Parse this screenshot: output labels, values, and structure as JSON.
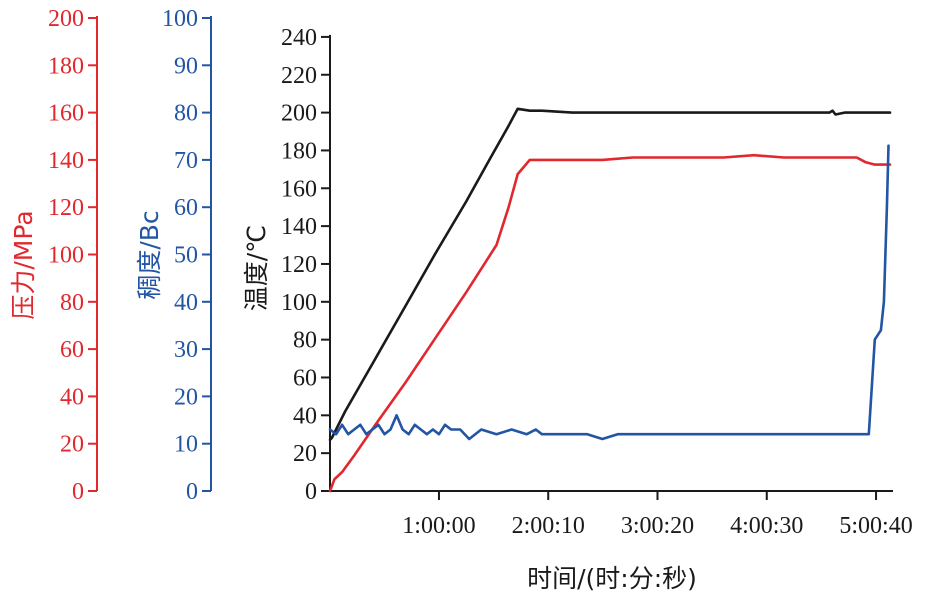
{
  "chart_data": {
    "type": "line",
    "xlabel": "时间/(时:分:秒)",
    "x_ticks": [
      "1:00:00",
      "2:00:10",
      "3:00:20",
      "4:00:30",
      "5:00:40"
    ],
    "x_tick_seconds": [
      3600,
      7210,
      10820,
      14430,
      18040
    ],
    "xlim": [
      0,
      18600
    ],
    "axes": [
      {
        "id": "pressure",
        "label": "压力/MPa",
        "color": "#e0282e",
        "ylim": [
          0,
          200
        ],
        "ticks": [
          0,
          20,
          40,
          60,
          80,
          100,
          120,
          140,
          160,
          180,
          200
        ]
      },
      {
        "id": "consistency",
        "label": "稠度/Bc",
        "color": "#2255a4",
        "ylim": [
          0,
          100
        ],
        "ticks": [
          0,
          10,
          20,
          30,
          40,
          50,
          60,
          70,
          80,
          90,
          100
        ]
      },
      {
        "id": "temperature",
        "label": "温度/℃",
        "color": "#1a1a1a",
        "ylim": [
          0,
          250
        ],
        "ticks": [
          0,
          20,
          40,
          60,
          80,
          100,
          120,
          140,
          160,
          180,
          200,
          220,
          240
        ]
      }
    ],
    "series": [
      {
        "axis": "temperature",
        "color": "#1a1a1a",
        "x": [
          0,
          60,
          500,
          1500,
          2500,
          3500,
          4500,
          5300,
          5900,
          6200,
          6600,
          7000,
          8000,
          9000,
          10000,
          11000,
          12000,
          13000,
          14000,
          15000,
          16000,
          16500,
          16600,
          16700,
          17000,
          18000,
          18500
        ],
        "y": [
          27,
          28,
          42,
          70,
          98,
          126,
          153,
          176,
          193,
          202,
          201,
          201,
          200,
          200,
          200,
          200,
          200,
          200,
          200,
          200,
          200,
          200,
          201,
          199,
          200,
          200,
          200
        ]
      },
      {
        "axis": "pressure",
        "color": "#e0282e",
        "x": [
          0,
          150,
          400,
          800,
          1500,
          2500,
          3500,
          4500,
          5500,
          5900,
          6200,
          6600,
          7000,
          8000,
          9000,
          10000,
          11000,
          12000,
          13000,
          14000,
          15000,
          16000,
          17000,
          17400,
          17700,
          18000,
          18500
        ],
        "y": [
          0,
          5,
          8,
          15,
          28,
          46,
          65,
          84,
          104,
          120,
          134,
          140,
          140,
          140,
          140,
          141,
          141,
          141,
          141,
          142,
          141,
          141,
          141,
          141,
          139,
          138,
          138
        ]
      },
      {
        "axis": "consistency",
        "color": "#2255a4",
        "x": [
          0,
          200,
          400,
          600,
          800,
          1000,
          1200,
          1400,
          1600,
          1800,
          2000,
          2200,
          2400,
          2600,
          2800,
          3000,
          3200,
          3400,
          3600,
          3800,
          4000,
          4300,
          4600,
          5000,
          5500,
          6000,
          6500,
          6800,
          7000,
          7500,
          8000,
          8500,
          9000,
          9500,
          10000,
          11000,
          12000,
          13000,
          14000,
          15000,
          16000,
          17000,
          17500,
          17700,
          17800,
          18000,
          18200,
          18300,
          18400,
          18450
        ],
        "y": [
          13,
          12,
          14,
          12,
          13,
          14,
          12,
          13,
          14,
          12,
          13,
          16,
          13,
          12,
          14,
          13,
          12,
          13,
          12,
          14,
          13,
          13,
          11,
          13,
          12,
          13,
          12,
          13,
          12,
          12,
          12,
          12,
          11,
          12,
          12,
          12,
          12,
          12,
          12,
          12,
          12,
          12,
          12,
          12,
          12,
          32,
          34,
          40,
          60,
          73
        ]
      }
    ]
  }
}
